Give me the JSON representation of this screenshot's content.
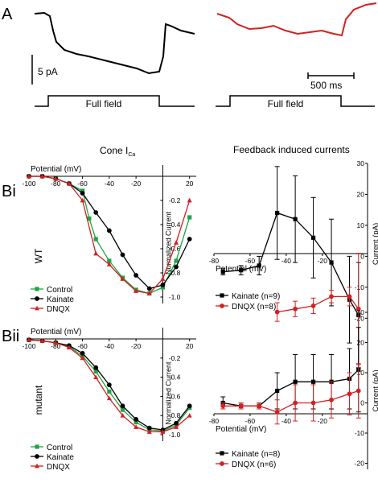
{
  "panel_labels": {
    "a": "A",
    "bi": "Bi",
    "bii": "Bii"
  },
  "panel_a": {
    "scale_current": "5 pA",
    "scale_time": "500 ms",
    "stim_left": "Full field",
    "stim_right": "Full field",
    "colors": {
      "left": "#000000",
      "right": "#d42020"
    }
  },
  "bi_title": "Cone I",
  "bi_title_sub": "Ca",
  "feedback_title": "Feedback induced currents",
  "row_labels": {
    "wt": "WT",
    "mutant": "mutant"
  },
  "chart_data": [
    {
      "id": "bi-iv",
      "type": "line",
      "xlabel": "Potential (mV)",
      "ylabel": "Normalized Current",
      "xlim": [
        -100,
        25
      ],
      "ylim": [
        -1.0,
        0.0
      ],
      "xticks": [
        -100,
        -80,
        -60,
        -40,
        -20,
        20
      ],
      "yticks": [
        -0.2,
        -0.4,
        -0.6,
        -0.8,
        -1.0
      ],
      "ytick_labels": [
        "-0.2",
        "-0.4",
        "-0.6",
        "-0.8",
        "-1.0"
      ],
      "legend_position": "bottom-left",
      "series": [
        {
          "name": "Control",
          "color": "#1fa544",
          "marker": "square",
          "x": [
            -100,
            -90,
            -80,
            -70,
            -60,
            -55,
            -50,
            -40,
            -30,
            -20,
            -10,
            0,
            10,
            20
          ],
          "y": [
            0.0,
            0.0,
            -0.02,
            -0.06,
            -0.12,
            -0.35,
            -0.52,
            -0.7,
            -0.84,
            -0.94,
            -0.97,
            -0.92,
            -0.7,
            -0.34
          ]
        },
        {
          "name": "Kainate",
          "color": "#000000",
          "marker": "circle",
          "x": [
            -100,
            -90,
            -80,
            -70,
            -60,
            -50,
            -40,
            -30,
            -20,
            -10,
            0,
            10,
            20
          ],
          "y": [
            0.0,
            0.0,
            -0.02,
            -0.06,
            -0.14,
            -0.3,
            -0.45,
            -0.65,
            -0.82,
            -0.93,
            -0.9,
            -0.75,
            -0.52
          ]
        },
        {
          "name": "DNQX",
          "color": "#d42020",
          "marker": "triangle",
          "x": [
            -100,
            -90,
            -80,
            -70,
            -60,
            -50,
            -40,
            -30,
            -20,
            -10,
            0,
            10,
            20
          ],
          "y": [
            0.0,
            0.0,
            -0.02,
            -0.06,
            -0.2,
            -0.64,
            -0.73,
            -0.85,
            -0.95,
            -0.97,
            -0.85,
            -0.55,
            -0.2
          ]
        }
      ]
    },
    {
      "id": "bi-feedback",
      "type": "line",
      "xlabel": "Potential (mV)",
      "ylabel": "Current (pA)",
      "xlim": [
        -80,
        5
      ],
      "ylim": [
        -22,
        30
      ],
      "xticks": [
        -80,
        -60,
        -40,
        -20
      ],
      "yticks": [
        30,
        20,
        10,
        0,
        -10,
        -20
      ],
      "legend_position": "bottom",
      "series": [
        {
          "name": "Kainate (n=9)",
          "color": "#000000",
          "marker": "square",
          "x": [
            -75,
            -65,
            -55,
            -45,
            -35,
            -25,
            -15,
            -5,
            0
          ],
          "y": [
            -5,
            -4.5,
            -3,
            14,
            12,
            6,
            -2,
            -14,
            -19
          ],
          "err": [
            1,
            1.5,
            3,
            15,
            14,
            13,
            14,
            14,
            17
          ]
        },
        {
          "name": "DNQX (n=8)",
          "color": "#d42020",
          "marker": "circle",
          "x": [
            -45,
            -35,
            -25,
            -15,
            -5,
            0
          ],
          "y": [
            -18,
            -17,
            -16,
            -13,
            -13,
            -17
          ],
          "err": [
            3,
            2.5,
            2.5,
            2,
            3,
            18
          ]
        }
      ]
    },
    {
      "id": "bii-iv",
      "type": "line",
      "xlabel": "Potential (mV)",
      "ylabel": "Normalized Current",
      "xlim": [
        -100,
        25
      ],
      "ylim": [
        -1.0,
        0.0
      ],
      "xticks": [
        -100,
        -80,
        -60,
        -40,
        -20,
        20
      ],
      "yticks": [
        -0.2,
        -0.4,
        -0.6,
        -0.8,
        -1.0
      ],
      "ytick_labels": [
        "-0.2",
        "-0.4",
        "-0.6",
        "-0.8",
        "-1.0"
      ],
      "legend_position": "bottom-left",
      "series": [
        {
          "name": "Control",
          "color": "#1fa544",
          "marker": "square",
          "x": [
            -100,
            -90,
            -80,
            -70,
            -60,
            -50,
            -40,
            -30,
            -20,
            -10,
            0,
            10,
            20
          ],
          "y": [
            -0.01,
            -0.02,
            -0.04,
            -0.08,
            -0.18,
            -0.34,
            -0.55,
            -0.74,
            -0.87,
            -0.95,
            -0.96,
            -0.9,
            -0.72
          ]
        },
        {
          "name": "Kainate",
          "color": "#000000",
          "marker": "circle",
          "x": [
            -100,
            -90,
            -80,
            -70,
            -60,
            -50,
            -40,
            -30,
            -20,
            -10,
            0,
            10,
            20
          ],
          "y": [
            -0.01,
            -0.02,
            -0.04,
            -0.07,
            -0.15,
            -0.3,
            -0.48,
            -0.7,
            -0.84,
            -0.93,
            -0.95,
            -0.88,
            -0.7
          ]
        },
        {
          "name": "DNQX",
          "color": "#d42020",
          "marker": "triangle",
          "x": [
            -100,
            -90,
            -80,
            -70,
            -60,
            -50,
            -40,
            -30,
            -20,
            -10,
            0,
            10,
            20
          ],
          "y": [
            -0.01,
            -0.02,
            -0.04,
            -0.09,
            -0.2,
            -0.4,
            -0.62,
            -0.8,
            -0.92,
            -0.97,
            -0.97,
            -0.92,
            -0.8
          ]
        }
      ]
    },
    {
      "id": "bii-feedback",
      "type": "line",
      "xlabel": "Potential (mV)",
      "ylabel": "Current (pA)",
      "xlim": [
        -80,
        5
      ],
      "ylim": [
        -22,
        30
      ],
      "xticks": [
        -80,
        -60,
        -40,
        -20
      ],
      "yticks": [
        30,
        20,
        10,
        0,
        -10,
        -20
      ],
      "legend_position": "bottom",
      "series": [
        {
          "name": "Kainate (n=8)",
          "color": "#000000",
          "marker": "square",
          "x": [
            -75,
            -65,
            -55,
            -45,
            -35,
            -25,
            -15,
            -5,
            0
          ],
          "y": [
            0,
            -1,
            -1,
            4,
            7,
            7,
            7,
            8,
            11
          ],
          "err": [
            2,
            1,
            1,
            6,
            9,
            9,
            9,
            10,
            14
          ]
        },
        {
          "name": "DNQX (n=6)",
          "color": "#d42020",
          "marker": "circle",
          "x": [
            -75,
            -65,
            -55,
            -45,
            -35,
            -25,
            -15,
            -5,
            0
          ],
          "y": [
            -1,
            -1,
            -1,
            -3,
            0,
            0,
            1,
            3,
            4
          ],
          "err": [
            1,
            1,
            1,
            4,
            6,
            6,
            6,
            7,
            9
          ]
        }
      ]
    }
  ]
}
